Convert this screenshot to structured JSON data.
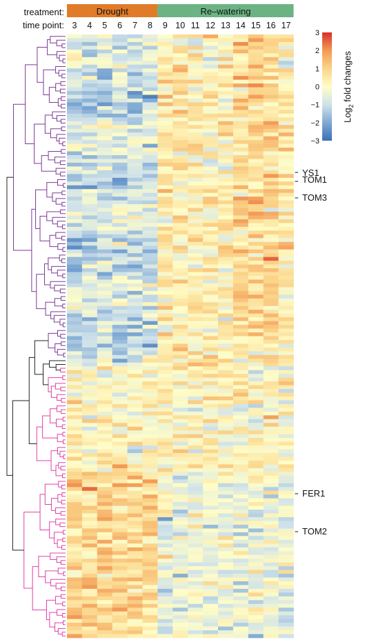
{
  "chart_data": {
    "type": "heatmap",
    "row_labels_title": "treatment:",
    "col_labels_title": "time point:",
    "treatments": [
      {
        "name": "Drought",
        "color": "#e07b2a",
        "columns": [
          "3",
          "4",
          "5",
          "6",
          "7",
          "8"
        ]
      },
      {
        "name": "Re–watering",
        "color": "#6bb383",
        "columns": [
          "9",
          "10",
          "11",
          "12",
          "13",
          "14",
          "15",
          "16",
          "17"
        ]
      }
    ],
    "time_points": [
      "3",
      "4",
      "5",
      "6",
      "7",
      "8",
      "9",
      "10",
      "11",
      "12",
      "13",
      "14",
      "15",
      "16",
      "17"
    ],
    "row_count": 160,
    "color_scale": {
      "title_main": "Log",
      "title_sub": "2",
      "title_rest": " fold changes",
      "min": -3,
      "max": 3,
      "ticks": [
        "3",
        "2",
        "1",
        "0",
        "−1",
        "−2",
        "−3"
      ],
      "low_color": "#3b6fb6",
      "mid_color": "#fffdc7",
      "high_color": "#d7302a"
    },
    "gene_annotations": [
      "YS1",
      "TOM1",
      "TOM3",
      "FER1",
      "TOM2"
    ],
    "dendrogram_cluster_colors": [
      "#7b3a96",
      "#e040a6"
    ],
    "grid": false,
    "legend_position": "top-right"
  }
}
